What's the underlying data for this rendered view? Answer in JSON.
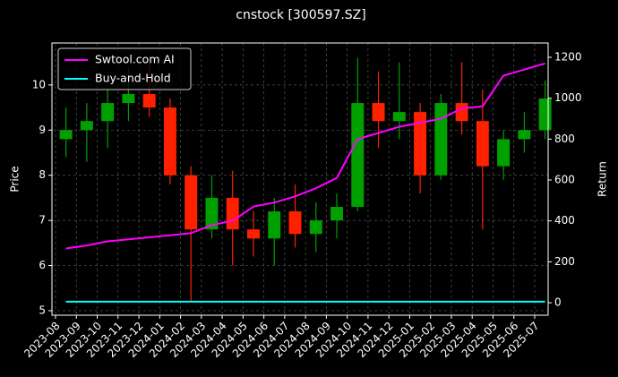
{
  "chart_data": {
    "type": "candlestick",
    "title": "cnstock [300597.SZ]",
    "ylabel": "Price",
    "y2label": "Return",
    "categories": [
      "2023-08",
      "2023-09",
      "2023-10",
      "2023-11",
      "2023-12",
      "2024-01",
      "2024-02",
      "2024-03",
      "2024-04",
      "2024-05",
      "2024-06",
      "2024-07",
      "2024-08",
      "2024-09",
      "2024-10",
      "2024-11",
      "2024-12",
      "2025-01",
      "2025-02",
      "2025-03",
      "2025-04",
      "2025-05",
      "2025-06",
      "2025-07"
    ],
    "open": [
      8.8,
      9.0,
      9.2,
      9.6,
      9.8,
      9.5,
      8.0,
      6.8,
      7.5,
      6.8,
      6.6,
      7.2,
      6.7,
      7.0,
      7.3,
      9.6,
      9.2,
      9.4,
      8.0,
      9.6,
      9.2,
      8.2,
      8.8,
      9.0
    ],
    "high": [
      9.5,
      9.6,
      9.9,
      10.4,
      10.5,
      9.7,
      8.2,
      8.0,
      8.1,
      7.2,
      7.5,
      7.8,
      7.4,
      7.6,
      10.6,
      10.3,
      10.5,
      9.6,
      9.8,
      10.5,
      9.9,
      9.0,
      9.4,
      10.1
    ],
    "low": [
      8.4,
      8.3,
      8.6,
      9.2,
      9.3,
      7.8,
      5.2,
      6.6,
      6.0,
      6.2,
      6.0,
      6.4,
      6.3,
      6.6,
      7.2,
      8.6,
      8.8,
      7.6,
      7.9,
      8.9,
      6.8,
      7.9,
      8.5,
      8.8
    ],
    "close": [
      9.0,
      9.2,
      9.6,
      9.8,
      9.5,
      8.0,
      6.8,
      7.5,
      6.8,
      6.6,
      7.2,
      6.7,
      7.0,
      7.3,
      9.6,
      9.2,
      9.4,
      8.0,
      9.6,
      9.2,
      8.2,
      8.8,
      9.0,
      9.7
    ],
    "up_color": "#00a000",
    "down_color": "#ff2000",
    "series": [
      {
        "name": "Swtool.com AI",
        "color": "#ff00ff",
        "axis": "y2",
        "values": [
          265,
          280,
          300,
          310,
          320,
          330,
          340,
          380,
          400,
          470,
          490,
          520,
          560,
          610,
          800,
          830,
          860,
          880,
          900,
          950,
          960,
          1110,
          1140,
          1170
        ]
      },
      {
        "name": "Buy-and-Hold",
        "color": "#00ffff",
        "axis": "y2",
        "values": [
          5,
          5,
          5,
          5,
          5,
          5,
          5,
          5,
          5,
          5,
          5,
          5,
          5,
          5,
          5,
          5,
          5,
          5,
          5,
          5,
          5,
          5,
          5,
          5
        ]
      }
    ],
    "ylim": [
      4.9,
      10.93
    ],
    "yticks": [
      5,
      6,
      7,
      8,
      9,
      10
    ],
    "y2lim": [
      -61,
      1270
    ],
    "y2ticks": [
      0,
      200,
      400,
      600,
      800,
      1000,
      1200
    ],
    "grid": true,
    "legend": "upper left"
  }
}
